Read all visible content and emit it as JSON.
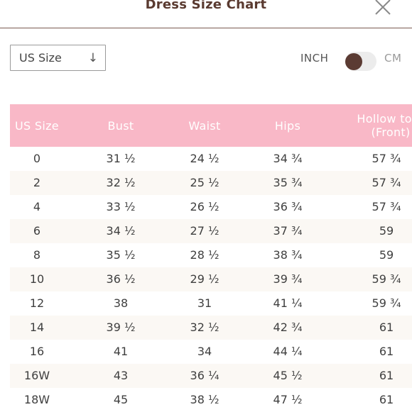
{
  "header": {
    "title": "Dress Size Chart"
  },
  "controls": {
    "size_select": "US Size",
    "unit_inch": "INCH",
    "unit_cm": "CM",
    "toggle_state": "inch"
  },
  "table": {
    "headers": [
      "US Size",
      "Bust",
      "Waist",
      "Hips",
      "Hollow to H",
      "(Front)"
    ],
    "rows": [
      [
        "0",
        "31 ½",
        "24 ½",
        "34 ¾",
        "57 ¾"
      ],
      [
        "2",
        "32 ½",
        "25 ½",
        "35 ¾",
        "57 ¾"
      ],
      [
        "4",
        "33 ½",
        "26 ½",
        "36 ¾",
        "57 ¾"
      ],
      [
        "6",
        "34 ½",
        "27 ½",
        "37 ¾",
        "59"
      ],
      [
        "8",
        "35 ½",
        "28 ½",
        "38 ¾",
        "59"
      ],
      [
        "10",
        "36 ½",
        "29 ½",
        "39 ¾",
        "59 ¾"
      ],
      [
        "12",
        "38",
        "31",
        "41 ¼",
        "59 ¾"
      ],
      [
        "14",
        "39 ½",
        "32 ½",
        "42 ¾",
        "61"
      ],
      [
        "16",
        "41",
        "34",
        "44 ¼",
        "61"
      ],
      [
        "16W",
        "43",
        "36 ¼",
        "45 ½",
        "61"
      ],
      [
        "18W",
        "45",
        "38 ½",
        "47 ½",
        "61"
      ]
    ]
  },
  "colors": {
    "header_row": "#f9b8c7",
    "toggle_knob": "#5b3b33",
    "title": "#5a3a30",
    "alt_row": "#fbf8f4"
  },
  "icons": {
    "close": "close-icon",
    "dropdown": "arrow-down-icon"
  }
}
